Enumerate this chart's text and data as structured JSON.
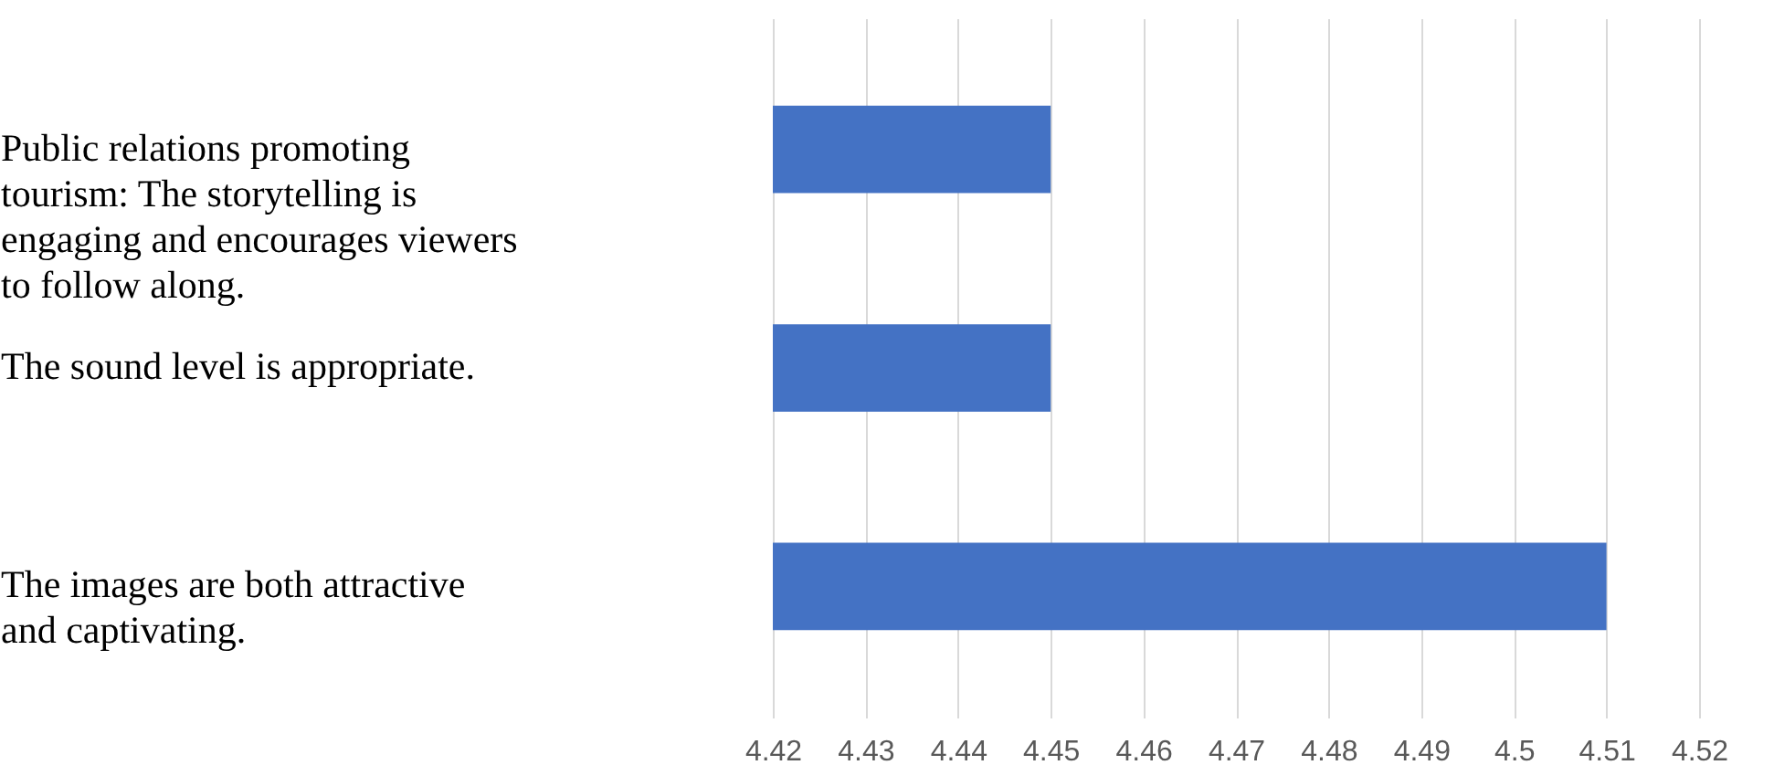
{
  "chart_data": {
    "type": "bar",
    "orientation": "horizontal",
    "categories": [
      "Public relations promoting tourism: The storytelling is engaging and encourages viewers to follow along.",
      "The sound level is appropriate.",
      "The images are both attractive and captivating."
    ],
    "values": [
      4.45,
      4.45,
      4.51
    ],
    "color": "#4472c4",
    "xlim": [
      4.42,
      4.52
    ],
    "xticks": [
      4.42,
      4.43,
      4.44,
      4.45,
      4.46,
      4.47,
      4.48,
      4.49,
      4.5,
      4.51,
      4.52
    ],
    "grid": "x"
  }
}
